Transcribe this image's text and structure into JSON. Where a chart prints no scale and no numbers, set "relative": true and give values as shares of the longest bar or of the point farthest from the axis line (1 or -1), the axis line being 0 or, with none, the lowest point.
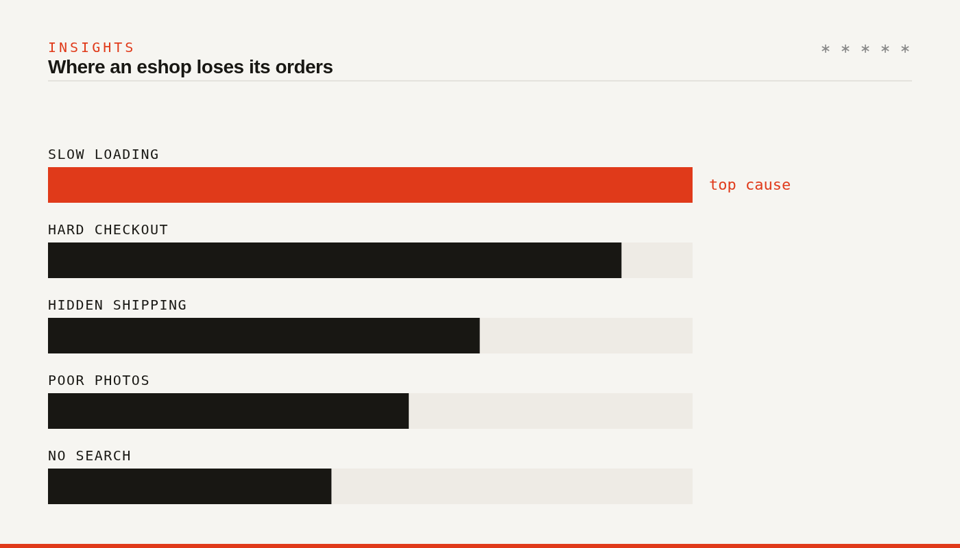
{
  "chart_data": {
    "type": "bar",
    "orientation": "horizontal",
    "relative": true,
    "stacked": true,
    "subtitle": "INSIGHTS",
    "title": "Where an eshop loses its orders",
    "categories": [
      "SLOW LOADING",
      "HARD CHECKOUT",
      "HIDDEN SHIPPING",
      "POOR PHOTOS",
      "NO SEARCH"
    ],
    "series": [
      {
        "values": [
          1,
          0.89,
          0.67,
          0.56,
          0.44
        ],
        "colors": [
          "#e03a1a",
          "#181713",
          "#181713",
          "#181713",
          "#181713"
        ]
      },
      {
        "values": [
          0,
          0.11,
          0.33,
          0.44,
          0.56
        ],
        "color": "#eeebe5"
      }
    ],
    "annotations": [
      "top cause"
    ]
  }
}
